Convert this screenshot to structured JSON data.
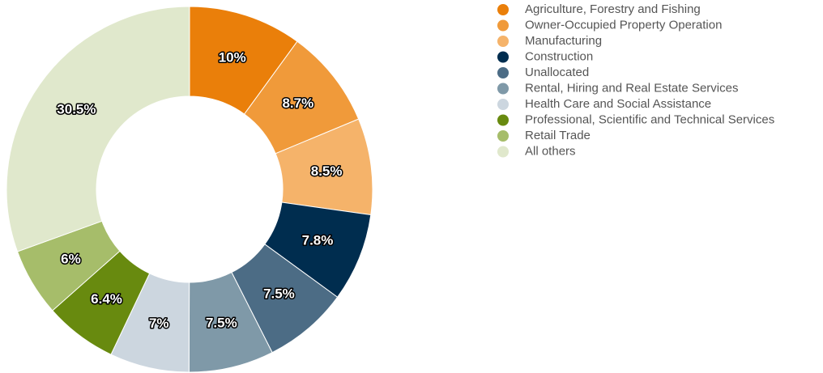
{
  "chart_data": {
    "type": "donut",
    "categories": [
      "Agriculture, Forestry and Fishing",
      "Owner-Occupied Property Operation",
      "Manufacturing",
      "Construction",
      "Unallocated",
      "Rental, Hiring and Real Estate Services",
      "Health Care and Social Assistance",
      "Professional, Scientific and Technical Services",
      "Retail Trade",
      "All others"
    ],
    "values": [
      10,
      8.7,
      8.5,
      7.8,
      7.5,
      7.5,
      7,
      6.4,
      6,
      30.5
    ],
    "value_labels": [
      "10%",
      "8.7%",
      "8.5%",
      "7.8%",
      "7.5%",
      "7.5%",
      "7%",
      "6.4%",
      "6%",
      "30.5%"
    ],
    "colors": [
      "#ea7f0a",
      "#f09a3a",
      "#f5b36a",
      "#002d4f",
      "#4c6c85",
      "#7f99a8",
      "#ccd6df",
      "#688a0f",
      "#a6bd6a",
      "#e0e8cc"
    ],
    "legend": "top-right"
  }
}
